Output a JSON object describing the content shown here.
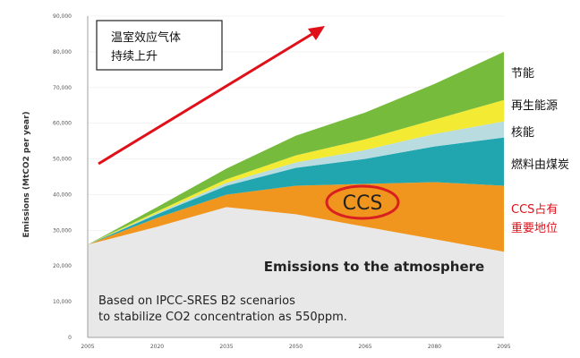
{
  "colors": {
    "atmosphere": "#e8e8e8",
    "ccs": "#f0961e",
    "coal_fuel": "#21a6b0",
    "nuclear": "#b8dce0",
    "renewable": "#f3ea33",
    "efficiency": "#77bb3d",
    "arrow": "#e0101a",
    "ellipse": "#d82020",
    "red_text": "#e0101a"
  },
  "chart_data": {
    "type": "area",
    "ylabel": "Emissions (MtCO2 per year)",
    "ylim": [
      0,
      90000
    ],
    "yticks": [
      "90,000",
      "80,000",
      "70,000",
      "60,000",
      "50,000",
      "40,000",
      "30,000",
      "20,000",
      "10,000",
      "0"
    ],
    "x": [
      2005,
      2020,
      2035,
      2050,
      2065,
      2080,
      2095
    ],
    "xticks": [
      "2005",
      "2020",
      "2035",
      "2050",
      "2065",
      "2080",
      "2095"
    ],
    "series": [
      {
        "name": "Emissions to the atmosphere",
        "values": [
          26000,
          31000,
          36500,
          34500,
          31000,
          27500,
          24000
        ]
      },
      {
        "name": "CCS占有重要地位",
        "values": [
          0,
          2500,
          3500,
          8000,
          12000,
          16000,
          18500
        ]
      },
      {
        "name": "燃料由煤炭",
        "values": [
          0,
          1000,
          2500,
          5000,
          7000,
          10000,
          13500
        ]
      },
      {
        "name": "核能",
        "values": [
          0,
          300,
          800,
          1500,
          2500,
          3500,
          4500
        ]
      },
      {
        "name": "再生能源",
        "values": [
          0,
          500,
          1000,
          2000,
          3000,
          4000,
          6000
        ]
      },
      {
        "name": "节能",
        "values": [
          0,
          1200,
          3000,
          5500,
          7500,
          10000,
          13500
        ]
      }
    ]
  },
  "labels": {
    "top_box_line1": "温室效应气体",
    "top_box_line2": "持续上升",
    "legend_efficiency": "节能",
    "legend_renewable": "再生能源",
    "legend_nuclear": "核能",
    "legend_coal": "燃料由煤炭",
    "legend_ccs_line1": "CCS占有",
    "legend_ccs_line2": "重要地位",
    "ccs_label": "CCS",
    "atmosphere_label": "Emissions to the atmosphere",
    "note_line1": "Based on IPCC-SRES B2 scenarios",
    "note_line2": "to stabilize CO2 concentration as 550ppm."
  }
}
